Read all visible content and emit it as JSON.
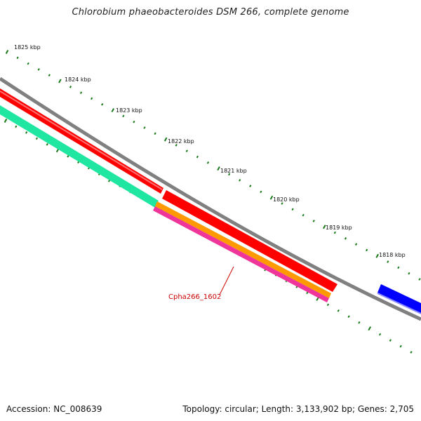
{
  "title": "Chlorobium phaeobacteroides DSM 266, complete genome",
  "ruler": {
    "labels": [
      "1825 kbp",
      "1824 kbp",
      "1823 kbp",
      "1822 kbp",
      "1821 kbp",
      "1820 kbp",
      "1819 kbp",
      "1818 kbp"
    ]
  },
  "gene_label": "Cpha266_1602",
  "colors": {
    "backbone": "#808080",
    "ticks": "#1a7a1a",
    "gene_red": "#ff0000",
    "gene_teal": "#1fe6a0",
    "gene_orange": "#ff9900",
    "gene_magenta": "#f0359a",
    "gene_blue": "#0000ff",
    "label": "#cc0000"
  },
  "footer": {
    "accession": "Accession: NC_008639",
    "info": "Topology: circular; Length: 3,133,902 bp; Genes: 2,705"
  }
}
